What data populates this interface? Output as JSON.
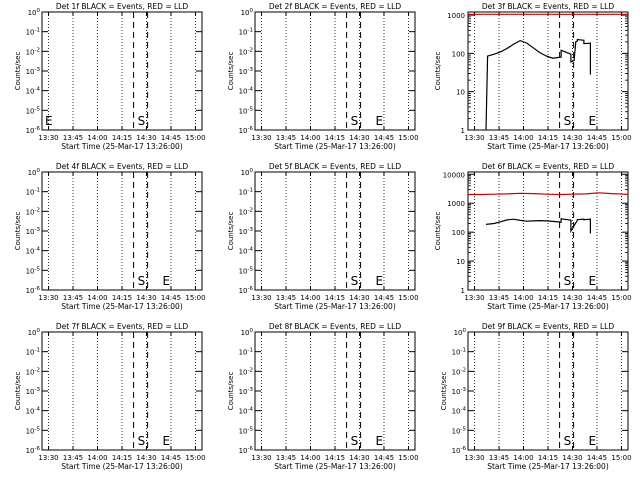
{
  "chart_data": [
    {
      "type": "line",
      "title": "Det 1f BLACK = Events, RED = LLD",
      "xlabel": "Start Time (25-Mar-17 13:26:00)",
      "ylabel": "Counts/sec",
      "x_ticks": [
        "13:30",
        "13:45",
        "14:00",
        "14:15",
        "14:30",
        "14:45",
        "15:00"
      ],
      "y_scale": "log",
      "y_ticks": [
        "10^0",
        "10^-1",
        "10^-2",
        "10^-3",
        "10^-4",
        "10^-5",
        "10^-6"
      ],
      "y_tick_base": "10",
      "y_tick_exps": [
        "0",
        "-1",
        "-2",
        "-3",
        "-4",
        "-5",
        "-6"
      ],
      "markers": [
        {
          "label": "S",
          "x": "14:27"
        },
        {
          "label": "E",
          "x": "13:26"
        }
      ],
      "series": []
    },
    {
      "type": "line",
      "title": "Det 2f BLACK = Events, RED = LLD",
      "xlabel": "Start Time (25-Mar-17 13:26:00)",
      "ylabel": "Counts/sec",
      "x_ticks": [
        "13:30",
        "13:45",
        "14:00",
        "14:15",
        "14:30",
        "14:45",
        "15:00"
      ],
      "y_scale": "log",
      "y_ticks": [
        "10^0",
        "10^-1",
        "10^-2",
        "10^-3",
        "10^-4",
        "10^-5",
        "10^-6"
      ],
      "y_tick_base": "10",
      "y_tick_exps": [
        "0",
        "-1",
        "-2",
        "-3",
        "-4",
        "-5",
        "-6"
      ],
      "markers": [
        {
          "label": "S",
          "x": "14:27"
        },
        {
          "label": "E",
          "x": "14:38"
        }
      ],
      "series": []
    },
    {
      "type": "line",
      "title": "Det 3f BLACK = Events, RED = LLD",
      "xlabel": "Start Time (25-Mar-17 13:26:00)",
      "ylabel": "Counts/sec",
      "x_ticks": [
        "13:30",
        "13:45",
        "14:00",
        "14:15",
        "14:30",
        "14:45",
        "15:00"
      ],
      "y_scale": "log",
      "y_ticks": [
        "1",
        "10",
        "100",
        "1000"
      ],
      "markers": [
        {
          "label": "S",
          "x": "14:27"
        },
        {
          "label": "E",
          "x": "14:38"
        }
      ],
      "series": [
        {
          "color": "#cc0000",
          "x": [
            "13:26",
            "13:40",
            "14:00",
            "14:20",
            "14:40",
            "15:04"
          ],
          "y": [
            1050,
            1050,
            1050,
            1050,
            1050,
            1050
          ]
        },
        {
          "color": "#000000",
          "x": [
            "13:37",
            "13:38",
            "13:42",
            "13:46",
            "13:50",
            "13:54",
            "13:58",
            "14:02",
            "14:06",
            "14:10",
            "14:14",
            "14:18",
            "14:21",
            "14:23",
            "14:23",
            "14:29",
            "14:29",
            "14:31",
            "14:32",
            "14:33",
            "14:33",
            "14:37",
            "14:37",
            "14:41",
            "14:41",
            "14:41"
          ],
          "y": [
            1,
            85,
            95,
            110,
            135,
            175,
            215,
            185,
            140,
            105,
            85,
            75,
            78,
            80,
            120,
            95,
            60,
            65,
            200,
            210,
            230,
            220,
            180,
            185,
            180,
            28
          ]
        }
      ]
    },
    {
      "type": "line",
      "title": "Det 4f BLACK = Events, RED = LLD",
      "xlabel": "Start Time (25-Mar-17 13:26:00)",
      "ylabel": "Counts/sec",
      "x_ticks": [
        "13:30",
        "13:45",
        "14:00",
        "14:15",
        "14:30",
        "14:45",
        "15:00"
      ],
      "y_scale": "log",
      "y_ticks": [
        "10^0",
        "10^-1",
        "10^-2",
        "10^-3",
        "10^-4",
        "10^-5",
        "10^-6"
      ],
      "y_tick_base": "10",
      "y_tick_exps": [
        "0",
        "-1",
        "-2",
        "-3",
        "-4",
        "-5",
        "-6"
      ],
      "markers": [
        {
          "label": "S",
          "x": "14:27"
        },
        {
          "label": "E",
          "x": "14:38"
        }
      ],
      "series": []
    },
    {
      "type": "line",
      "title": "Det 5f BLACK = Events, RED = LLD",
      "xlabel": "Start Time (25-Mar-17 13:26:00)",
      "ylabel": "Counts/sec",
      "x_ticks": [
        "13:30",
        "13:45",
        "14:00",
        "14:15",
        "14:30",
        "14:45",
        "15:00"
      ],
      "y_scale": "log",
      "y_ticks": [
        "10^0",
        "10^-1",
        "10^-2",
        "10^-3",
        "10^-4",
        "10^-5",
        "10^-6"
      ],
      "y_tick_base": "10",
      "y_tick_exps": [
        "0",
        "-1",
        "-2",
        "-3",
        "-4",
        "-5",
        "-6"
      ],
      "markers": [
        {
          "label": "S",
          "x": "14:27"
        },
        {
          "label": "E",
          "x": "14:38"
        }
      ],
      "series": []
    },
    {
      "type": "line",
      "title": "Det 6f BLACK = Events, RED = LLD",
      "xlabel": "Start Time (25-Mar-17 13:26:00)",
      "ylabel": "Counts/sec",
      "x_ticks": [
        "13:30",
        "13:45",
        "14:00",
        "14:15",
        "14:30",
        "14:45",
        "15:00"
      ],
      "y_scale": "log",
      "y_ticks": [
        "1",
        "10",
        "100",
        "1000",
        "10000"
      ],
      "markers": [
        {
          "label": "S",
          "x": "14:27"
        },
        {
          "label": "E",
          "x": "14:38"
        }
      ],
      "series": [
        {
          "color": "#cc0000",
          "x": [
            "13:26",
            "13:34",
            "13:42",
            "13:50",
            "13:58",
            "14:06",
            "14:14",
            "14:22",
            "14:30",
            "14:38",
            "14:46",
            "14:54",
            "15:02",
            "15:04"
          ],
          "y": [
            2000,
            2000,
            2050,
            2100,
            2200,
            2150,
            2050,
            2000,
            2050,
            2100,
            2300,
            2150,
            2050,
            2000
          ]
        },
        {
          "color": "#000000",
          "x": [
            "13:37",
            "13:42",
            "13:46",
            "13:50",
            "13:54",
            "13:58",
            "14:02",
            "14:06",
            "14:10",
            "14:14",
            "14:18",
            "14:22",
            "14:23",
            "14:23",
            "14:29",
            "14:29",
            "14:33",
            "14:33",
            "14:37",
            "14:37",
            "14:41",
            "14:41",
            "14:41"
          ],
          "y": [
            185,
            200,
            230,
            265,
            280,
            255,
            240,
            245,
            250,
            245,
            235,
            225,
            220,
            290,
            260,
            110,
            260,
            270,
            280,
            270,
            280,
            270,
            90
          ]
        }
      ]
    },
    {
      "type": "line",
      "title": "Det 7f BLACK = Events, RED = LLD",
      "xlabel": "Start Time (25-Mar-17 13:26:00)",
      "ylabel": "Counts/sec",
      "x_ticks": [
        "13:30",
        "13:45",
        "14:00",
        "14:15",
        "14:30",
        "14:45",
        "15:00"
      ],
      "y_scale": "log",
      "y_ticks": [
        "10^0",
        "10^-1",
        "10^-2",
        "10^-3",
        "10^-4",
        "10^-5",
        "10^-6"
      ],
      "y_tick_base": "10",
      "y_tick_exps": [
        "0",
        "-1",
        "-2",
        "-3",
        "-4",
        "-5",
        "-6"
      ],
      "markers": [
        {
          "label": "S",
          "x": "14:27"
        },
        {
          "label": "E",
          "x": "14:38"
        }
      ],
      "series": []
    },
    {
      "type": "line",
      "title": "Det 8f BLACK = Events, RED = LLD",
      "xlabel": "Start Time (25-Mar-17 13:26:00)",
      "ylabel": "Counts/sec",
      "x_ticks": [
        "13:30",
        "13:45",
        "14:00",
        "14:15",
        "14:30",
        "14:45",
        "15:00"
      ],
      "y_scale": "log",
      "y_ticks": [
        "10^0",
        "10^-1",
        "10^-2",
        "10^-3",
        "10^-4",
        "10^-5",
        "10^-6"
      ],
      "y_tick_base": "10",
      "y_tick_exps": [
        "0",
        "-1",
        "-2",
        "-3",
        "-4",
        "-5",
        "-6"
      ],
      "markers": [
        {
          "label": "S",
          "x": "14:27"
        },
        {
          "label": "E",
          "x": "14:38"
        }
      ],
      "series": []
    },
    {
      "type": "line",
      "title": "Det 9f BLACK = Events, RED = LLD",
      "xlabel": "Start Time (25-Mar-17 13:26:00)",
      "ylabel": "Counts/sec",
      "x_ticks": [
        "13:30",
        "13:45",
        "14:00",
        "14:15",
        "14:30",
        "14:45",
        "15:00"
      ],
      "y_scale": "log",
      "y_ticks": [
        "10^0",
        "10^-1",
        "10^-2",
        "10^-3",
        "10^-4",
        "10^-5",
        "10^-6"
      ],
      "y_tick_base": "10",
      "y_tick_exps": [
        "0",
        "-1",
        "-2",
        "-3",
        "-4",
        "-5",
        "-6"
      ],
      "markers": [
        {
          "label": "S",
          "x": "14:27"
        },
        {
          "label": "E",
          "x": "14:38"
        }
      ],
      "series": []
    }
  ]
}
